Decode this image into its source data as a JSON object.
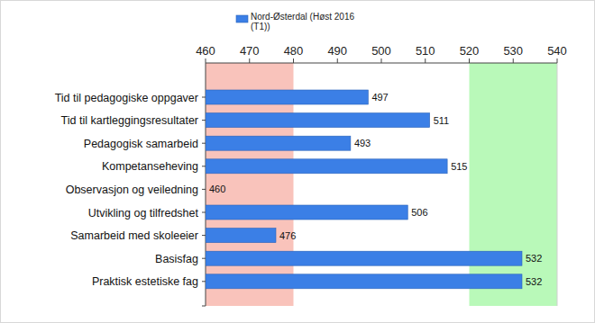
{
  "chart_data": {
    "type": "bar",
    "orientation": "horizontal",
    "categories": [
      "Tid til pedagogiske oppgaver",
      "Tid til kartleggingsresultater",
      "Pedagogisk samarbeid",
      "Kompetanseheving",
      "Observasjon og veiledning",
      "Utvikling og tilfredshet",
      "Samarbeid med skoleeier",
      "Basisfag",
      "Praktisk estetiske fag"
    ],
    "series": [
      {
        "name": "Nord-Østerdal (Høst 2016 (T1))",
        "color": "#3b7fe6",
        "values": [
          497,
          511,
          493,
          515,
          460,
          506,
          476,
          532,
          532
        ]
      }
    ],
    "xlim": [
      460,
      540
    ],
    "xticks": [
      460,
      470,
      480,
      490,
      500,
      510,
      520,
      530,
      540
    ],
    "bands": [
      {
        "from": 460,
        "to": 480,
        "color": "#f9c3bb"
      },
      {
        "from": 520,
        "to": 540,
        "color": "#b9f9b9"
      }
    ],
    "data_labels": true,
    "grid": false,
    "legend": "top"
  }
}
